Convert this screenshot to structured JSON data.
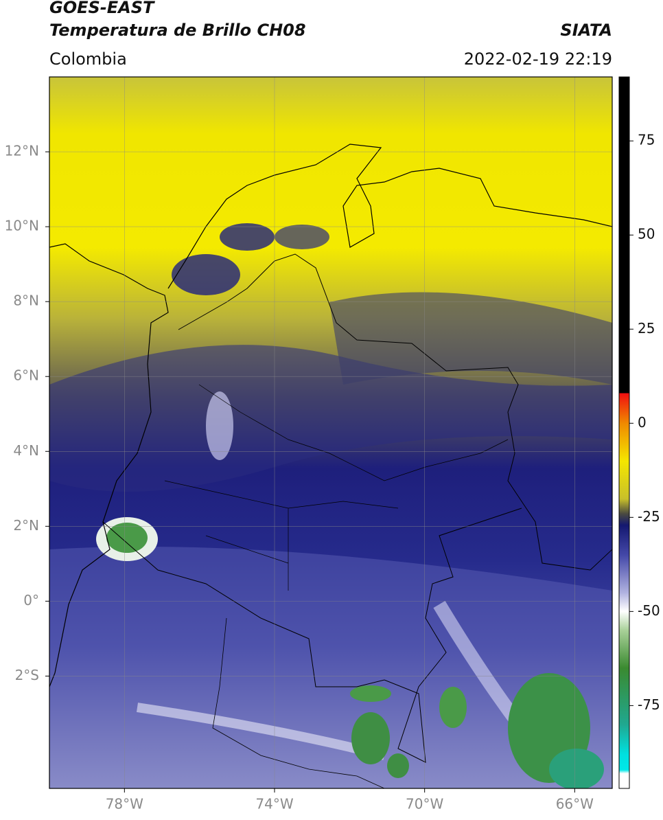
{
  "header": {
    "title": "GOES-EAST",
    "subtitle": "Temperatura de Brillo CH08",
    "region": "Colombia",
    "source": "SIATA",
    "datetime": "2022-02-19 22:19"
  },
  "map": {
    "lonlim": [
      -80,
      -65
    ],
    "latlim": [
      -5,
      14
    ],
    "grid": true,
    "lon_ticks": [
      {
        "value": -78,
        "label": "78°W"
      },
      {
        "value": -74,
        "label": "74°W"
      },
      {
        "value": -70,
        "label": "70°W"
      },
      {
        "value": -66,
        "label": "66°W"
      }
    ],
    "lat_ticks": [
      {
        "value": 12,
        "label": "12°N"
      },
      {
        "value": 10,
        "label": "10°N"
      },
      {
        "value": 8,
        "label": "8°N"
      },
      {
        "value": 6,
        "label": "6°N"
      },
      {
        "value": 4,
        "label": "4°N"
      },
      {
        "value": 2,
        "label": "2°N"
      },
      {
        "value": 0,
        "label": "0°"
      },
      {
        "value": -2,
        "label": "2°S"
      }
    ]
  },
  "colorbar": {
    "lim": [
      -97,
      92
    ],
    "ticks": [
      75,
      50,
      25,
      0,
      -25,
      -50,
      -75
    ]
  }
}
